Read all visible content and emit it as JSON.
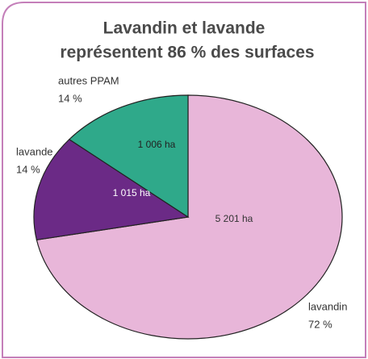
{
  "chart_data": {
    "type": "pie",
    "title": [
      "Lavandin et lavande",
      "représentent 86 % des surfaces"
    ],
    "categories": [
      "lavandin",
      "lavande",
      "autres PPAM"
    ],
    "values": [
      72,
      14,
      14
    ],
    "value_labels": [
      "72 %",
      "14 %",
      "14 %"
    ],
    "areas": [
      5201,
      1015,
      1006
    ],
    "area_labels": [
      "5 201 ha",
      "1 015 ha",
      "1 006 ha"
    ],
    "colors": [
      "#e8b6d9",
      "#6b2a86",
      "#2fa98a"
    ]
  }
}
